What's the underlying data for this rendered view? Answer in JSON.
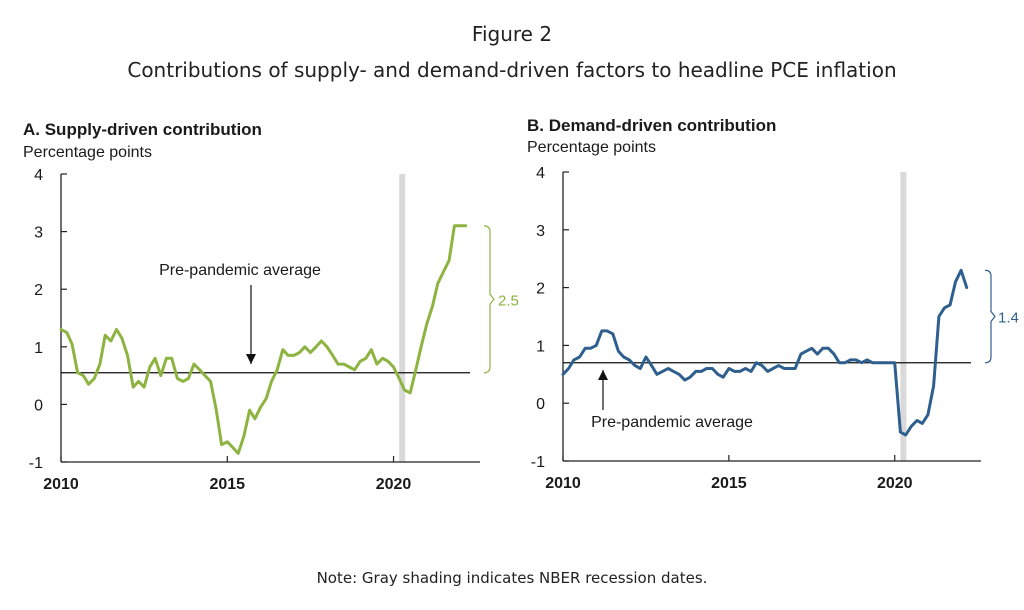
{
  "figure": {
    "number": "Figure 2",
    "subtitle": "Contributions of supply- and demand-driven factors to headline PCE inflation",
    "note": "Note: Gray shading indicates NBER recession dates."
  },
  "colors": {
    "supply_line": "#8DB441",
    "demand_line": "#2E5F8E",
    "recession_band": "#D9D9D9",
    "axis": "#222222"
  },
  "chart_data": [
    {
      "type": "line",
      "title": "A. Supply-driven contribution",
      "ylabel": "Percentage points",
      "xlim": [
        2010,
        2022.6
      ],
      "ylim": [
        -1,
        4
      ],
      "yticks": [
        -1,
        0,
        1,
        2,
        3,
        4
      ],
      "xticks": [
        2010,
        2015,
        2020
      ],
      "recession": [
        2020.17,
        2020.33
      ],
      "average": 0.55,
      "average_label": "Pre-pandemic average",
      "bracket_label": "2.5",
      "series": [
        {
          "name": "Supply-driven contribution",
          "x": [
            2010.0,
            2010.17,
            2010.33,
            2010.5,
            2010.67,
            2010.83,
            2011.0,
            2011.17,
            2011.33,
            2011.5,
            2011.67,
            2011.83,
            2012.0,
            2012.17,
            2012.33,
            2012.5,
            2012.67,
            2012.83,
            2013.0,
            2013.17,
            2013.33,
            2013.5,
            2013.67,
            2013.83,
            2014.0,
            2014.17,
            2014.33,
            2014.5,
            2014.67,
            2014.83,
            2015.0,
            2015.17,
            2015.33,
            2015.5,
            2015.67,
            2015.83,
            2016.0,
            2016.17,
            2016.33,
            2016.5,
            2016.67,
            2016.83,
            2017.0,
            2017.17,
            2017.33,
            2017.5,
            2017.67,
            2017.83,
            2018.0,
            2018.17,
            2018.33,
            2018.5,
            2018.67,
            2018.83,
            2019.0,
            2019.17,
            2019.33,
            2019.5,
            2019.67,
            2019.83,
            2020.0,
            2020.17,
            2020.33,
            2020.5,
            2020.67,
            2020.83,
            2021.0,
            2021.17,
            2021.33,
            2021.5,
            2021.67,
            2021.83,
            2022.0,
            2022.1,
            2022.17
          ],
          "values": [
            1.3,
            1.25,
            1.05,
            0.55,
            0.5,
            0.35,
            0.45,
            0.7,
            1.2,
            1.1,
            1.3,
            1.15,
            0.85,
            0.3,
            0.4,
            0.3,
            0.65,
            0.8,
            0.5,
            0.8,
            0.8,
            0.45,
            0.4,
            0.45,
            0.7,
            0.6,
            0.5,
            0.4,
            -0.1,
            -0.7,
            -0.65,
            -0.75,
            -0.85,
            -0.55,
            -0.1,
            -0.25,
            -0.05,
            0.1,
            0.4,
            0.6,
            0.95,
            0.85,
            0.85,
            0.9,
            1.0,
            0.9,
            1.0,
            1.1,
            1.0,
            0.85,
            0.7,
            0.7,
            0.65,
            0.6,
            0.75,
            0.8,
            0.95,
            0.7,
            0.8,
            0.75,
            0.65,
            0.45,
            0.25,
            0.2,
            0.6,
            1.0,
            1.4,
            1.7,
            2.1,
            2.3,
            2.5,
            3.1,
            3.1,
            3.1,
            3.1
          ]
        }
      ]
    },
    {
      "type": "line",
      "title": "B. Demand-driven contribution",
      "ylabel": "Percentage points",
      "xlim": [
        2010,
        2022.6
      ],
      "ylim": [
        -1,
        4
      ],
      "yticks": [
        -1,
        0,
        1,
        2,
        3,
        4
      ],
      "xticks": [
        2010,
        2015,
        2020
      ],
      "recession": [
        2020.17,
        2020.33
      ],
      "average": 0.7,
      "average_label": "Pre-pandemic average",
      "bracket_label": "1.4",
      "series": [
        {
          "name": "Demand-driven contribution",
          "x": [
            2010.0,
            2010.17,
            2010.33,
            2010.5,
            2010.67,
            2010.83,
            2011.0,
            2011.17,
            2011.33,
            2011.5,
            2011.67,
            2011.83,
            2012.0,
            2012.17,
            2012.33,
            2012.5,
            2012.67,
            2012.83,
            2013.0,
            2013.17,
            2013.33,
            2013.5,
            2013.67,
            2013.83,
            2014.0,
            2014.17,
            2014.33,
            2014.5,
            2014.67,
            2014.83,
            2015.0,
            2015.17,
            2015.33,
            2015.5,
            2015.67,
            2015.83,
            2016.0,
            2016.17,
            2016.33,
            2016.5,
            2016.67,
            2016.83,
            2017.0,
            2017.17,
            2017.33,
            2017.5,
            2017.67,
            2017.83,
            2018.0,
            2018.17,
            2018.33,
            2018.5,
            2018.67,
            2018.83,
            2019.0,
            2019.17,
            2019.33,
            2019.5,
            2019.67,
            2019.83,
            2020.0,
            2020.17,
            2020.33,
            2020.5,
            2020.67,
            2020.83,
            2021.0,
            2021.17,
            2021.33,
            2021.5,
            2021.67,
            2021.83,
            2022.0,
            2022.17
          ],
          "values": [
            0.5,
            0.6,
            0.75,
            0.8,
            0.95,
            0.95,
            1.0,
            1.25,
            1.25,
            1.2,
            0.9,
            0.8,
            0.75,
            0.65,
            0.6,
            0.8,
            0.65,
            0.5,
            0.55,
            0.6,
            0.55,
            0.5,
            0.4,
            0.45,
            0.55,
            0.55,
            0.6,
            0.6,
            0.5,
            0.45,
            0.6,
            0.55,
            0.55,
            0.6,
            0.55,
            0.7,
            0.65,
            0.55,
            0.6,
            0.65,
            0.6,
            0.6,
            0.6,
            0.85,
            0.9,
            0.95,
            0.85,
            0.95,
            0.95,
            0.85,
            0.7,
            0.7,
            0.75,
            0.75,
            0.7,
            0.75,
            0.7,
            0.7,
            0.7,
            0.7,
            0.7,
            -0.5,
            -0.55,
            -0.4,
            -0.3,
            -0.35,
            -0.2,
            0.3,
            1.5,
            1.65,
            1.7,
            2.1,
            2.3,
            2.0
          ]
        }
      ]
    }
  ]
}
